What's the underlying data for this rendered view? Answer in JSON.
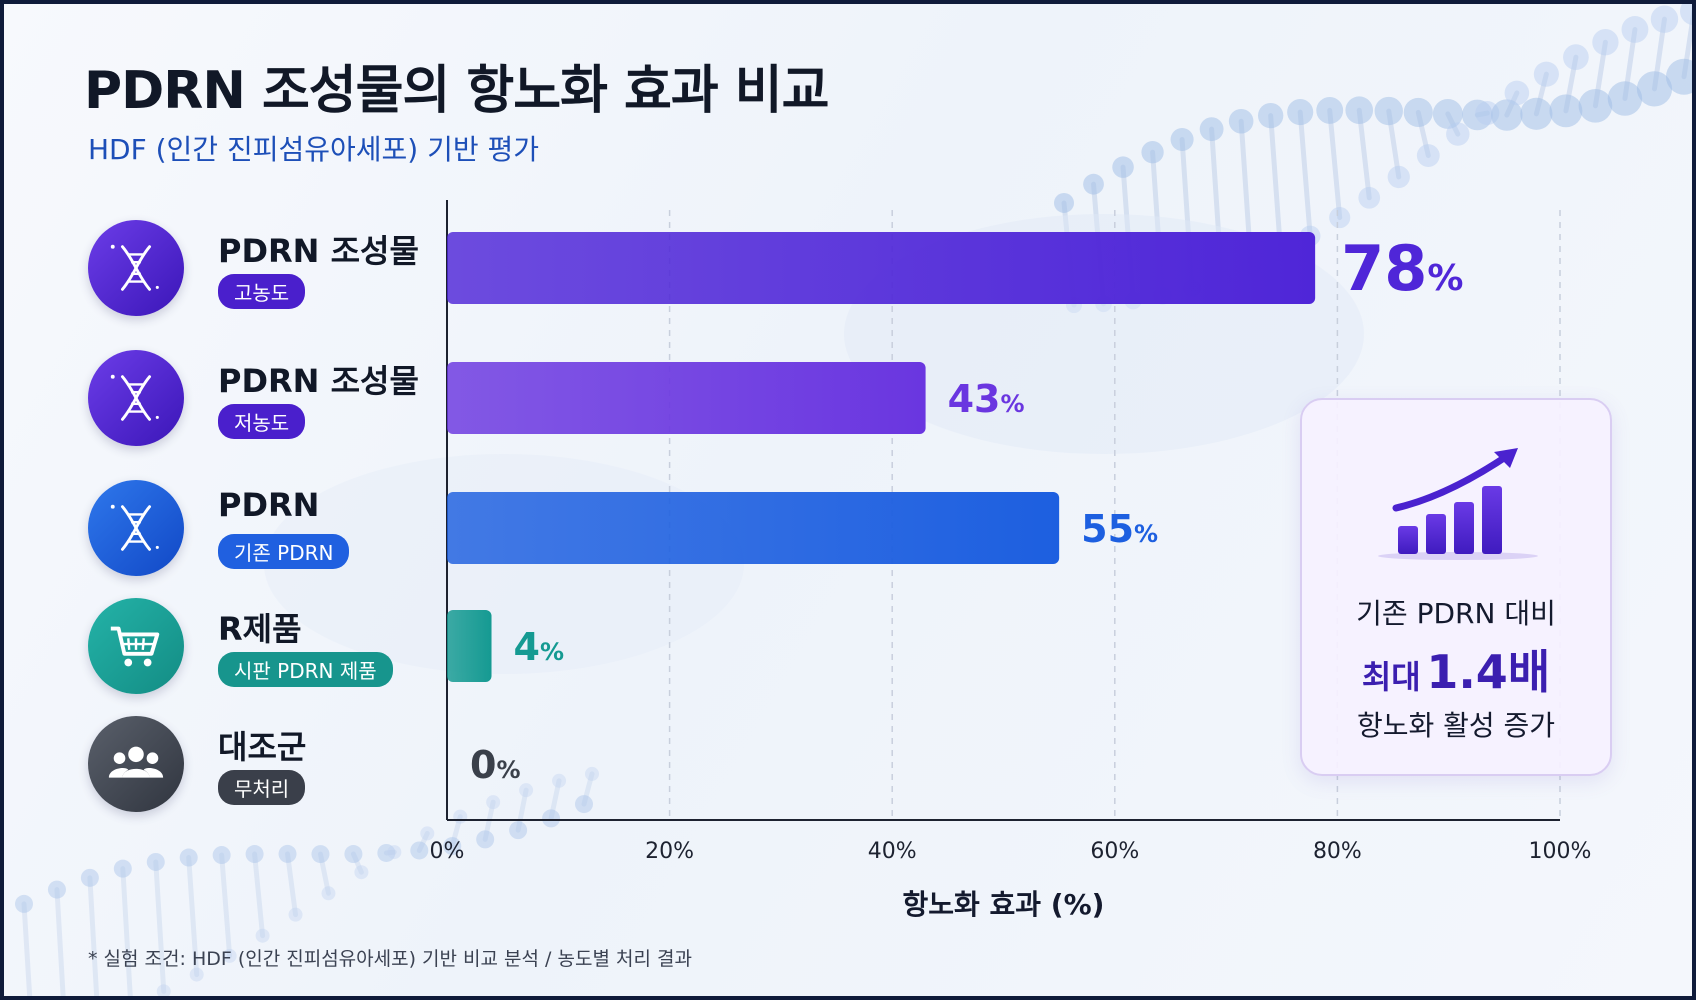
{
  "title": "PDRN 조성물의 항노화 효과 비교",
  "subtitle": "HDF (인간 진피섬유아세포) 기반 평가",
  "colors": {
    "purple_dark": "#4d22d4",
    "purple_light": "#7a45e6",
    "blue": "#1d64dc",
    "teal": "#179c95",
    "gray": "#3d434f"
  },
  "chart_data": {
    "type": "bar",
    "orientation": "horizontal",
    "categories": [
      {
        "name": "PDRN 조성물",
        "tag": "고농도",
        "icon": "dna-icon",
        "value": 78,
        "label_num": "78",
        "color": "#4f26d8"
      },
      {
        "name": "PDRN 조성물",
        "tag": "저농도",
        "icon": "dna-icon",
        "value": 43,
        "label_num": "43",
        "color": "#6a36e0"
      },
      {
        "name": "PDRN",
        "tag": "기존 PDRN",
        "icon": "dna-icon",
        "value": 55,
        "label_num": "55",
        "color": "#1d5fe0"
      },
      {
        "name": "R제품",
        "tag": "시판 PDRN 제품",
        "icon": "shopping-cart-icon",
        "value": 4,
        "label_num": "4",
        "color": "#159a92"
      },
      {
        "name": "대조군",
        "tag": "무처리",
        "icon": "people-icon",
        "value": 0,
        "label_num": "0",
        "color": "#444a55"
      }
    ],
    "percent_sign": "%",
    "x_ticks": [
      "0%",
      "20%",
      "40%",
      "60%",
      "80%",
      "100%"
    ],
    "xlim": [
      0,
      100
    ],
    "xlabel": "항노화 효과 (%)",
    "grid": "vertical dashed"
  },
  "callout": {
    "icon": "growth-chart-icon",
    "line1": "기존 PDRN 대비",
    "line2_prefix": "최대",
    "line2_value": "1.4배",
    "line3": "항노화 활성 증가"
  },
  "footnote": "* 실험 조건: HDF (인간 진피섬유아세포) 기반 비교 분석 / 농도별 처리 결과"
}
